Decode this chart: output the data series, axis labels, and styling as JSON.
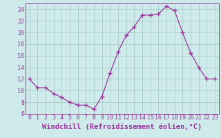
{
  "x": [
    0,
    1,
    2,
    3,
    4,
    5,
    6,
    7,
    8,
    9,
    10,
    11,
    12,
    13,
    14,
    15,
    16,
    17,
    18,
    19,
    20,
    21,
    22,
    23
  ],
  "y": [
    12,
    10.5,
    10.5,
    9.5,
    8.8,
    8.0,
    7.5,
    7.5,
    6.8,
    9.0,
    13.0,
    16.7,
    19.5,
    21.0,
    23.0,
    23.0,
    23.2,
    24.5,
    23.8,
    20.0,
    16.5,
    14.0,
    12.0,
    12.0
  ],
  "xlim": [
    -0.5,
    23.5
  ],
  "ylim": [
    6,
    25
  ],
  "xticks": [
    0,
    1,
    2,
    3,
    4,
    5,
    6,
    7,
    8,
    9,
    10,
    11,
    12,
    13,
    14,
    15,
    16,
    17,
    18,
    19,
    20,
    21,
    22,
    23
  ],
  "yticks": [
    6,
    8,
    10,
    12,
    14,
    16,
    18,
    20,
    22,
    24
  ],
  "xlabel": "Windchill (Refroidissement éolien,°C)",
  "line_color": "#993399",
  "marker": "+",
  "marker_size": 4,
  "bg_color": "#ceeaea",
  "grid_color": "#aacccc",
  "tick_label_fontsize": 6,
  "xlabel_fontsize": 7.5
}
